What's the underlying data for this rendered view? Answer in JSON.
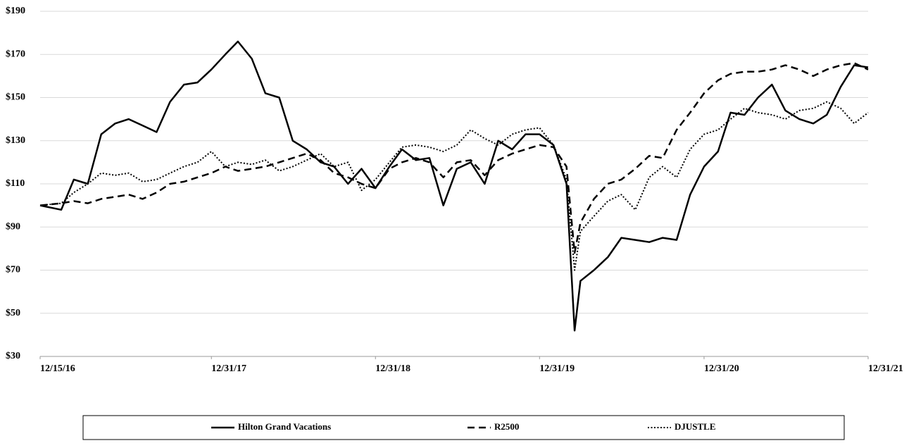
{
  "chart_data": {
    "type": "line",
    "x": [
      "2016-12-15",
      "2017-01-31",
      "2017-02-28",
      "2017-03-31",
      "2017-04-30",
      "2017-05-31",
      "2017-06-30",
      "2017-07-31",
      "2017-08-31",
      "2017-09-30",
      "2017-10-31",
      "2017-11-30",
      "2017-12-31",
      "2018-01-31",
      "2018-02-28",
      "2018-03-31",
      "2018-04-30",
      "2018-05-31",
      "2018-06-30",
      "2018-07-31",
      "2018-08-31",
      "2018-09-30",
      "2018-10-31",
      "2018-11-30",
      "2018-12-31",
      "2019-01-31",
      "2019-02-28",
      "2019-03-31",
      "2019-04-30",
      "2019-05-31",
      "2019-06-30",
      "2019-07-31",
      "2019-08-31",
      "2019-09-30",
      "2019-10-31",
      "2019-11-30",
      "2019-12-31",
      "2020-01-31",
      "2020-02-29",
      "2020-03-18",
      "2020-03-31",
      "2020-04-30",
      "2020-05-31",
      "2020-06-30",
      "2020-07-31",
      "2020-08-31",
      "2020-09-30",
      "2020-10-31",
      "2020-11-30",
      "2020-12-31",
      "2021-01-31",
      "2021-02-28",
      "2021-03-31",
      "2021-04-30",
      "2021-05-31",
      "2021-06-30",
      "2021-07-31",
      "2021-08-31",
      "2021-09-30",
      "2021-10-31",
      "2021-11-30",
      "2021-12-31"
    ],
    "series": [
      {
        "name": "Hilton Grand Vacations",
        "color": "#000000",
        "style": "solid",
        "values": [
          100,
          98,
          112,
          110,
          133,
          138,
          140,
          137,
          134,
          148,
          156,
          157,
          163,
          170,
          176,
          168,
          152,
          150,
          130,
          126,
          120,
          118,
          110,
          117,
          108,
          118,
          126,
          121,
          122,
          100,
          117,
          120,
          110,
          130,
          126,
          133,
          133,
          128,
          110,
          42,
          65,
          70,
          76,
          85,
          84,
          83,
          85,
          84,
          105,
          118,
          125,
          143,
          142,
          150,
          156,
          144,
          140,
          138,
          142,
          155,
          165,
          164
        ]
      },
      {
        "name": "R2500",
        "color": "#000000",
        "style": "dashed",
        "values": [
          100,
          101,
          102,
          101,
          103,
          104,
          105,
          103,
          106,
          110,
          111,
          113,
          115,
          118,
          116,
          117,
          118,
          120,
          122,
          124,
          121,
          115,
          113,
          110,
          108,
          117,
          120,
          122,
          120,
          113,
          120,
          121,
          114,
          121,
          124,
          126,
          128,
          127,
          118,
          78,
          92,
          103,
          110,
          112,
          117,
          123,
          122,
          135,
          143,
          152,
          158,
          161,
          162,
          162,
          163,
          165,
          163,
          160,
          163,
          165,
          166,
          163
        ]
      },
      {
        "name": "DJUSTLE",
        "color": "#000000",
        "style": "dotted",
        "values": [
          100,
          101,
          106,
          110,
          115,
          114,
          115,
          111,
          112,
          115,
          118,
          120,
          125,
          118,
          120,
          119,
          121,
          116,
          118,
          121,
          124,
          118,
          120,
          107,
          112,
          120,
          127,
          128,
          127,
          125,
          128,
          135,
          131,
          128,
          133,
          135,
          136,
          128,
          112,
          70,
          88,
          95,
          102,
          105,
          98,
          113,
          118,
          113,
          126,
          133,
          135,
          140,
          145,
          143,
          142,
          140,
          144,
          145,
          148,
          145,
          138,
          143
        ]
      }
    ],
    "xlim": [
      "2016-12-15",
      "2021-12-31"
    ],
    "xticks": [
      {
        "value": "2016-12-15",
        "label": "12/15/16"
      },
      {
        "value": "2017-12-31",
        "label": "12/31/17"
      },
      {
        "value": "2018-12-31",
        "label": "12/31/18"
      },
      {
        "value": "2019-12-31",
        "label": "12/31/19"
      },
      {
        "value": "2020-12-31",
        "label": "12/31/20"
      },
      {
        "value": "2021-12-31",
        "label": "12/31/21"
      }
    ],
    "ylim": [
      30,
      190
    ],
    "yticks": [
      {
        "value": 30,
        "label": "$30"
      },
      {
        "value": 50,
        "label": "$50"
      },
      {
        "value": 70,
        "label": "$70"
      },
      {
        "value": 90,
        "label": "$90"
      },
      {
        "value": 110,
        "label": "$110"
      },
      {
        "value": 130,
        "label": "$130"
      },
      {
        "value": 150,
        "label": "$150"
      },
      {
        "value": 170,
        "label": "$170"
      },
      {
        "value": 190,
        "label": "$190"
      }
    ],
    "grid": true,
    "legend": "bottom"
  }
}
